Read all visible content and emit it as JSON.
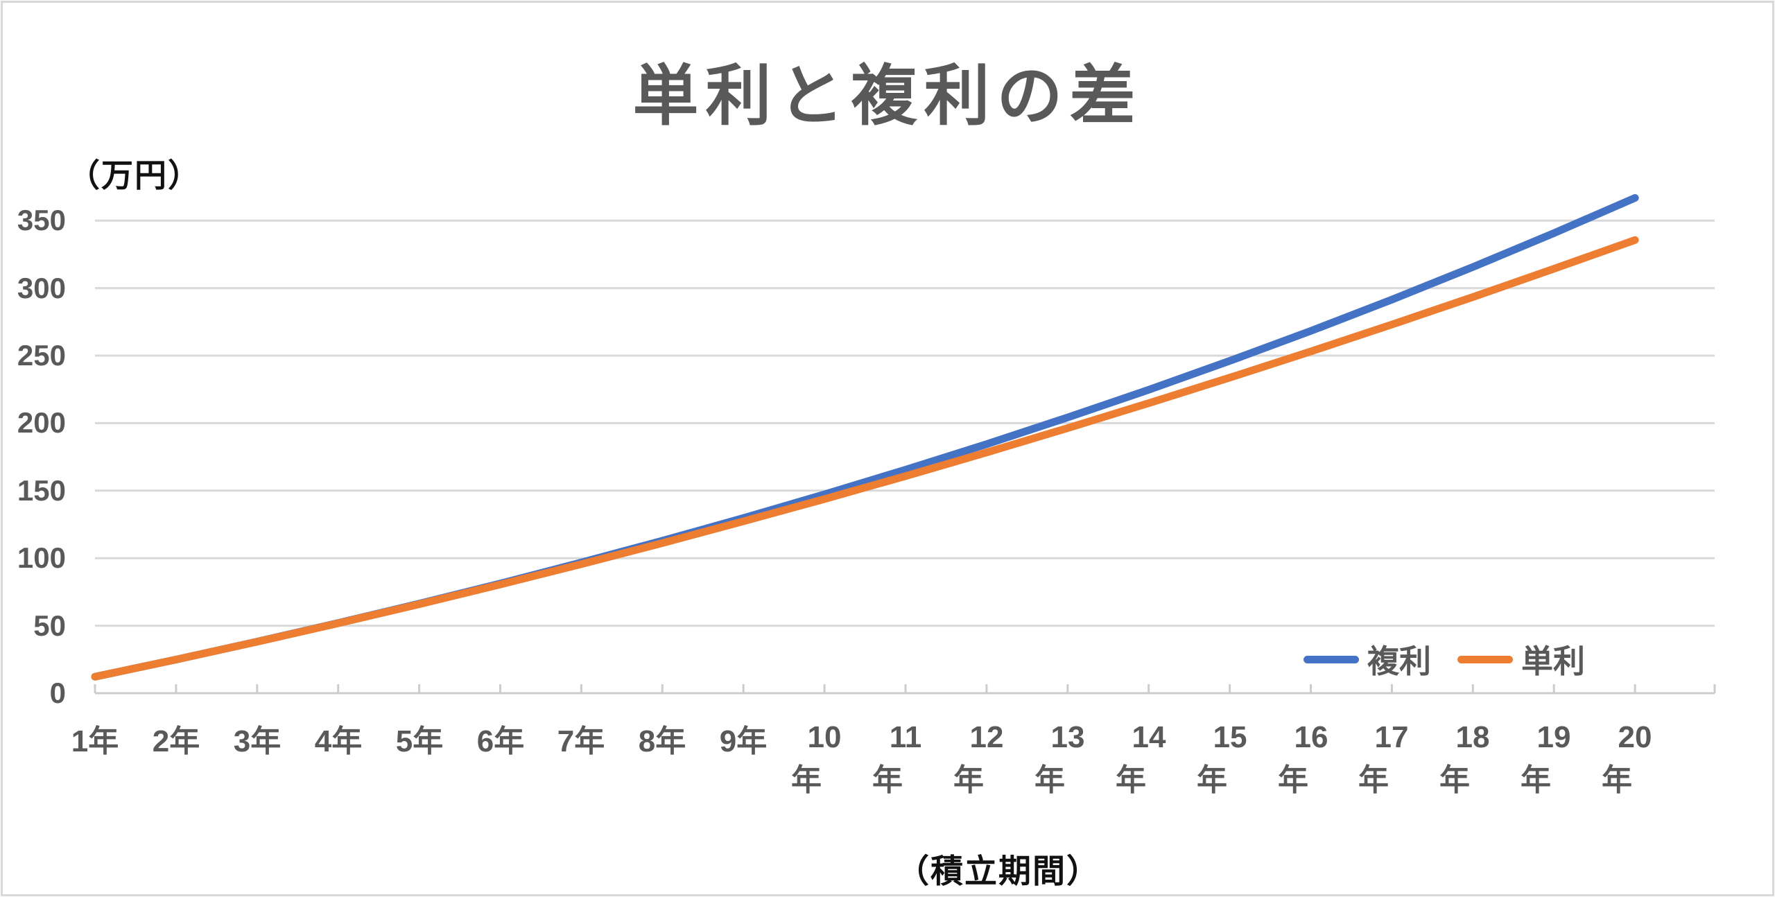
{
  "chart_data": {
    "type": "line",
    "title": "単利と複利の差",
    "y_unit": "（万円）",
    "xlabel": "（積立期間）",
    "ylabel": "",
    "categories": [
      "1年",
      "2年",
      "3年",
      "4年",
      "5年",
      "6年",
      "7年",
      "8年",
      "9年",
      "10年",
      "11年",
      "12年",
      "13年",
      "14年",
      "15年",
      "16年",
      "17年",
      "18年",
      "19年",
      "20年"
    ],
    "y_ticks": [
      0,
      50,
      100,
      150,
      200,
      250,
      300,
      350
    ],
    "ylim": [
      0,
      375
    ],
    "grid": "horizontal",
    "gridline_color": "#d9d9d9",
    "axis_line_color": "#cccccc",
    "text_color": "#595959",
    "legend_position": "inside-bottom-right",
    "series": [
      {
        "name": "複利",
        "color": "#4472C4",
        "values": [
          12.2,
          24.9,
          38.2,
          52.0,
          66.3,
          81.2,
          96.8,
          112.9,
          129.7,
          147.3,
          165.5,
          184.4,
          204.2,
          224.7,
          246.1,
          268.3,
          291.5,
          315.6,
          340.7,
          366.8
        ]
      },
      {
        "name": "単利",
        "color": "#ED7D31",
        "values": [
          12.2,
          24.9,
          38.1,
          51.8,
          65.9,
          80.5,
          95.6,
          111.2,
          127.3,
          143.8,
          160.8,
          178.3,
          196.3,
          214.8,
          233.7,
          253.1,
          273.0,
          293.4,
          314.3,
          335.6
        ]
      }
    ]
  }
}
